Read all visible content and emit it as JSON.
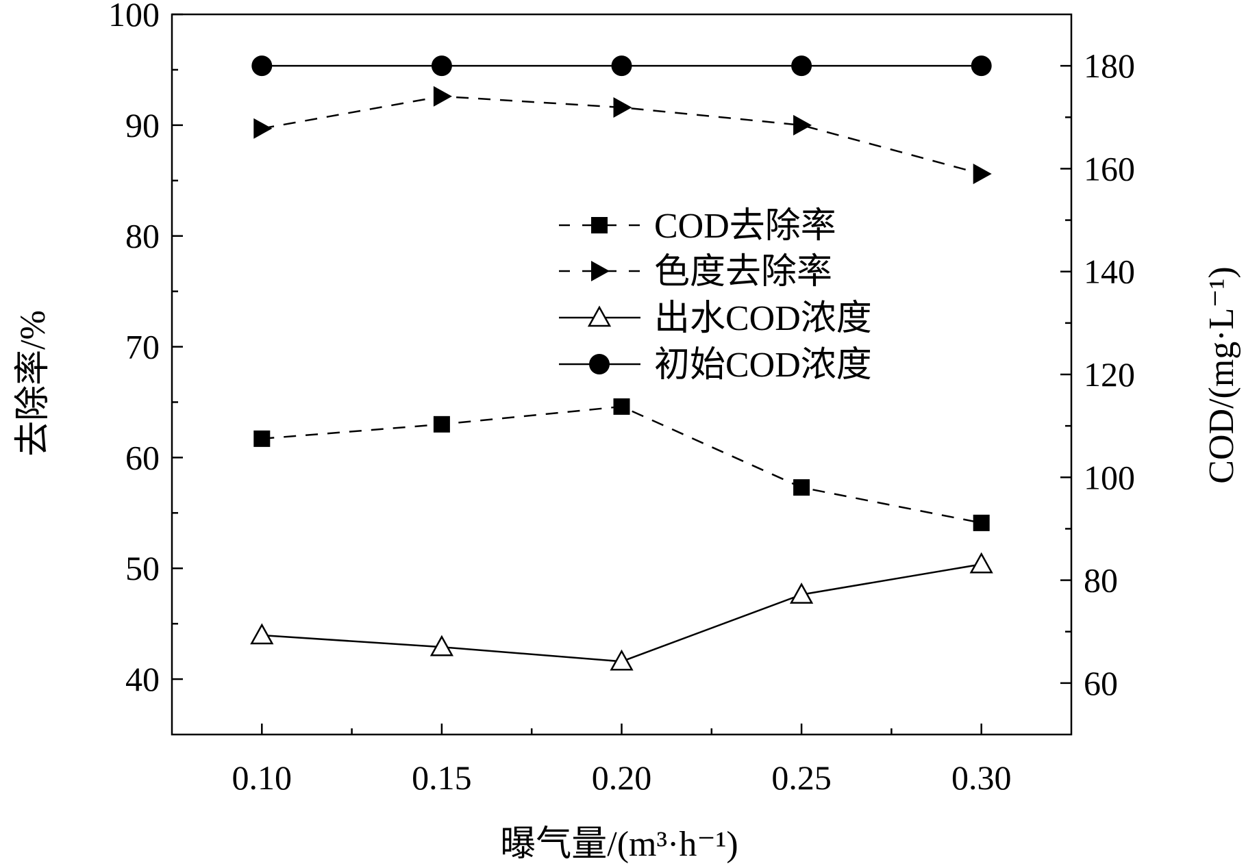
{
  "chart_data": {
    "type": "line",
    "title": "",
    "xlabel": "曝气量/(m³·h⁻¹)",
    "ylabel": "去除率/%",
    "y2label": "COD/(mg·L⁻¹)",
    "x": [
      0.1,
      0.15,
      0.2,
      0.25,
      0.3
    ],
    "x_ticks": [
      "0.10",
      "0.15",
      "0.20",
      "0.25",
      "0.30"
    ],
    "y_ticks": [
      "40",
      "50",
      "60",
      "70",
      "80",
      "90",
      "100"
    ],
    "y2_ticks": [
      "60",
      "80",
      "100",
      "120",
      "140",
      "160",
      "180"
    ],
    "xlim": [
      0.075,
      0.325
    ],
    "ylim": [
      35,
      100
    ],
    "y2lim": [
      50,
      190
    ],
    "grid": false,
    "legend_position": "center-right",
    "series": [
      {
        "name": "COD去除率",
        "axis": "left",
        "style": "dashed",
        "marker": "square-filled",
        "values": [
          61.7,
          63.0,
          64.6,
          57.3,
          54.1
        ]
      },
      {
        "name": "色度去除率",
        "axis": "left",
        "style": "dashed",
        "marker": "triangle-right-filled",
        "values": [
          89.7,
          92.6,
          91.6,
          90.0,
          85.6
        ]
      },
      {
        "name": "出水COD浓度",
        "axis": "right",
        "style": "solid",
        "marker": "triangle-open",
        "values": [
          69.3,
          67.0,
          64.2,
          77.2,
          83.1
        ]
      },
      {
        "name": "初始COD浓度",
        "axis": "right",
        "style": "solid",
        "marker": "circle-filled",
        "values": [
          180,
          180,
          180,
          180,
          180
        ]
      }
    ]
  }
}
